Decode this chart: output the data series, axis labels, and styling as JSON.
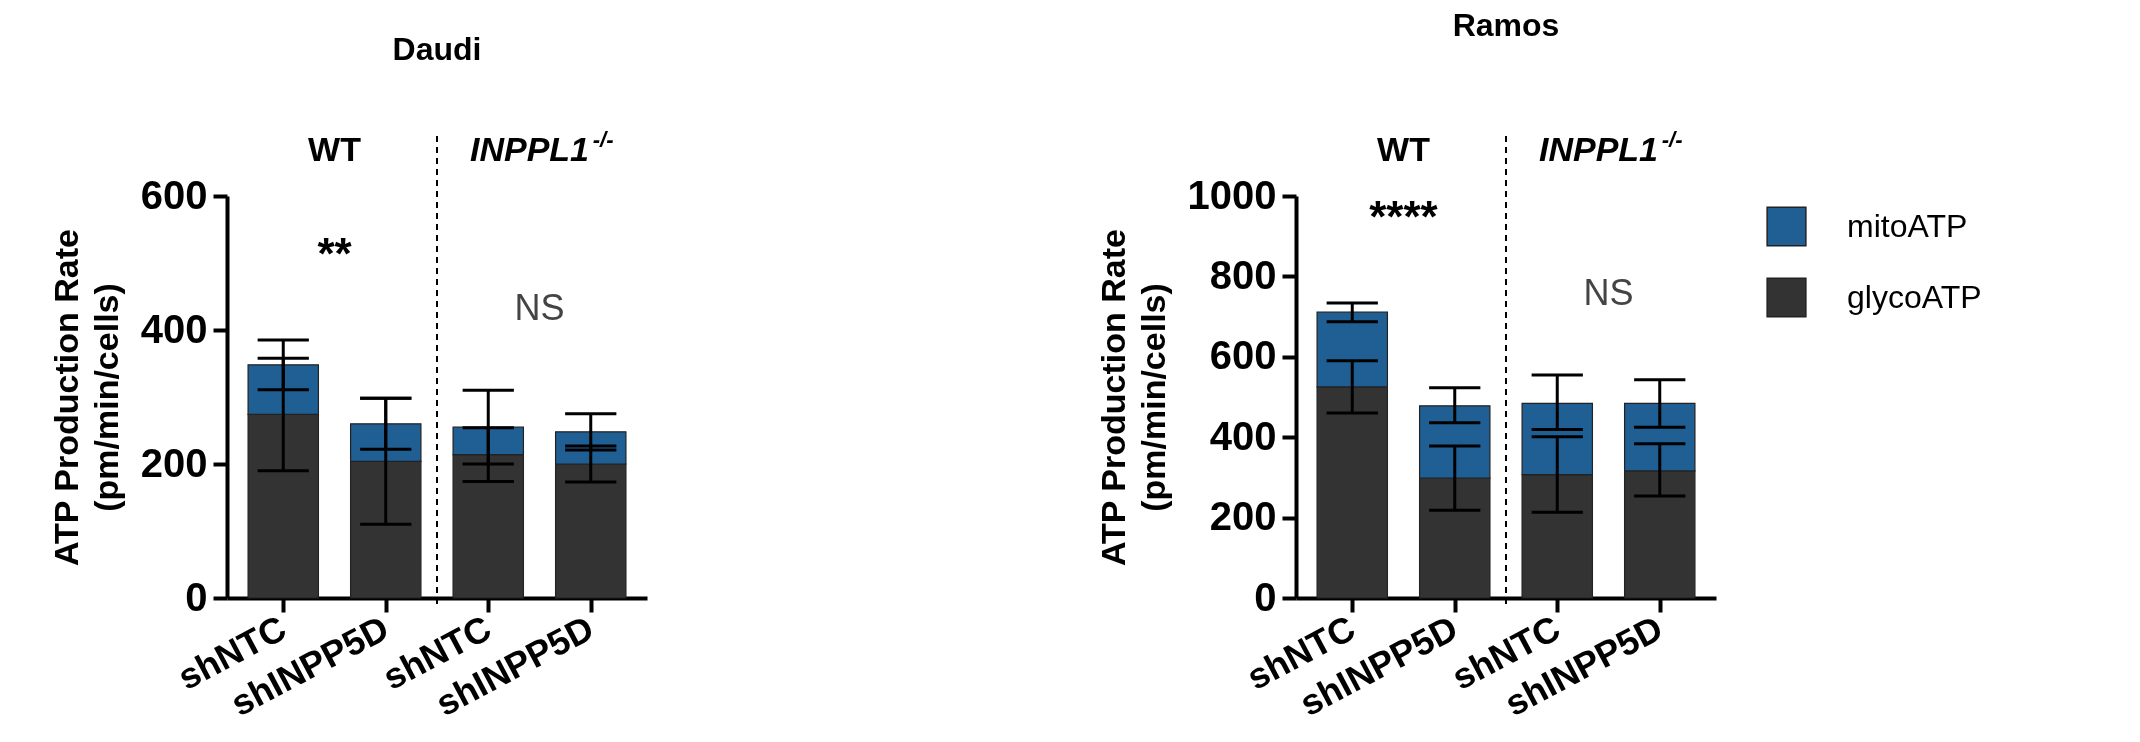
{
  "chart_data": [
    {
      "type": "bar",
      "title": "Daudi",
      "ylabel": "ATP Production Rate\n(pm/min/cells)",
      "categories": [
        "shNTC",
        "shINPP5D",
        "shNTC",
        "shINPP5D"
      ],
      "stacked": true,
      "ylim": [
        0,
        600
      ],
      "yticks": [
        0,
        200,
        400,
        600
      ],
      "legend": "right",
      "series": [
        {
          "name": "glycoATP",
          "color": "#333333",
          "values": [
            274,
            204,
            214,
            200
          ],
          "errors": [
            [
              190,
              358
            ],
            [
              110,
              298
            ],
            [
              174,
              254
            ],
            [
              173,
              227
            ]
          ]
        },
        {
          "name": "mitoATP",
          "color": "#1f5f94",
          "values": [
            74,
            56,
            41,
            48
          ],
          "errors": [
            [
              311,
              385
            ],
            [
              222,
              298
            ],
            [
              200,
              310
            ],
            [
              221,
              275
            ]
          ]
        }
      ],
      "annotations": [
        "WT",
        "INPPL1$^{-/-}$",
        "**",
        "NS"
      ]
    },
    {
      "type": "bar",
      "title": "Ramos",
      "ylabel": "ATP Production Rate\n(pm/min/cells)",
      "categories": [
        "shNTC",
        "shINPP5D",
        "shNTC",
        "shINPP5D"
      ],
      "stacked": true,
      "ylim": [
        0,
        1000
      ],
      "yticks": [
        0,
        200,
        400,
        600,
        800,
        1000
      ],
      "legend": "right",
      "series": [
        {
          "name": "glycoATP",
          "color": "#333333",
          "values": [
            525,
            298,
            307,
            316
          ],
          "errors": [
            [
              460,
              590
            ],
            [
              218,
              378
            ],
            [
              213,
              401
            ],
            [
              254,
              384
            ]
          ]
        },
        {
          "name": "mitoATP",
          "color": "#1f5f94",
          "values": [
            186,
            180,
            177,
            168
          ],
          "errors": [
            [
              687,
              734
            ],
            [
              436,
              523
            ],
            [
              419,
              555
            ],
            [
              425,
              543
            ]
          ]
        }
      ],
      "annotations": [
        "WT",
        "INPPL1$^{-/-}$",
        "****",
        "NS"
      ]
    }
  ]
}
